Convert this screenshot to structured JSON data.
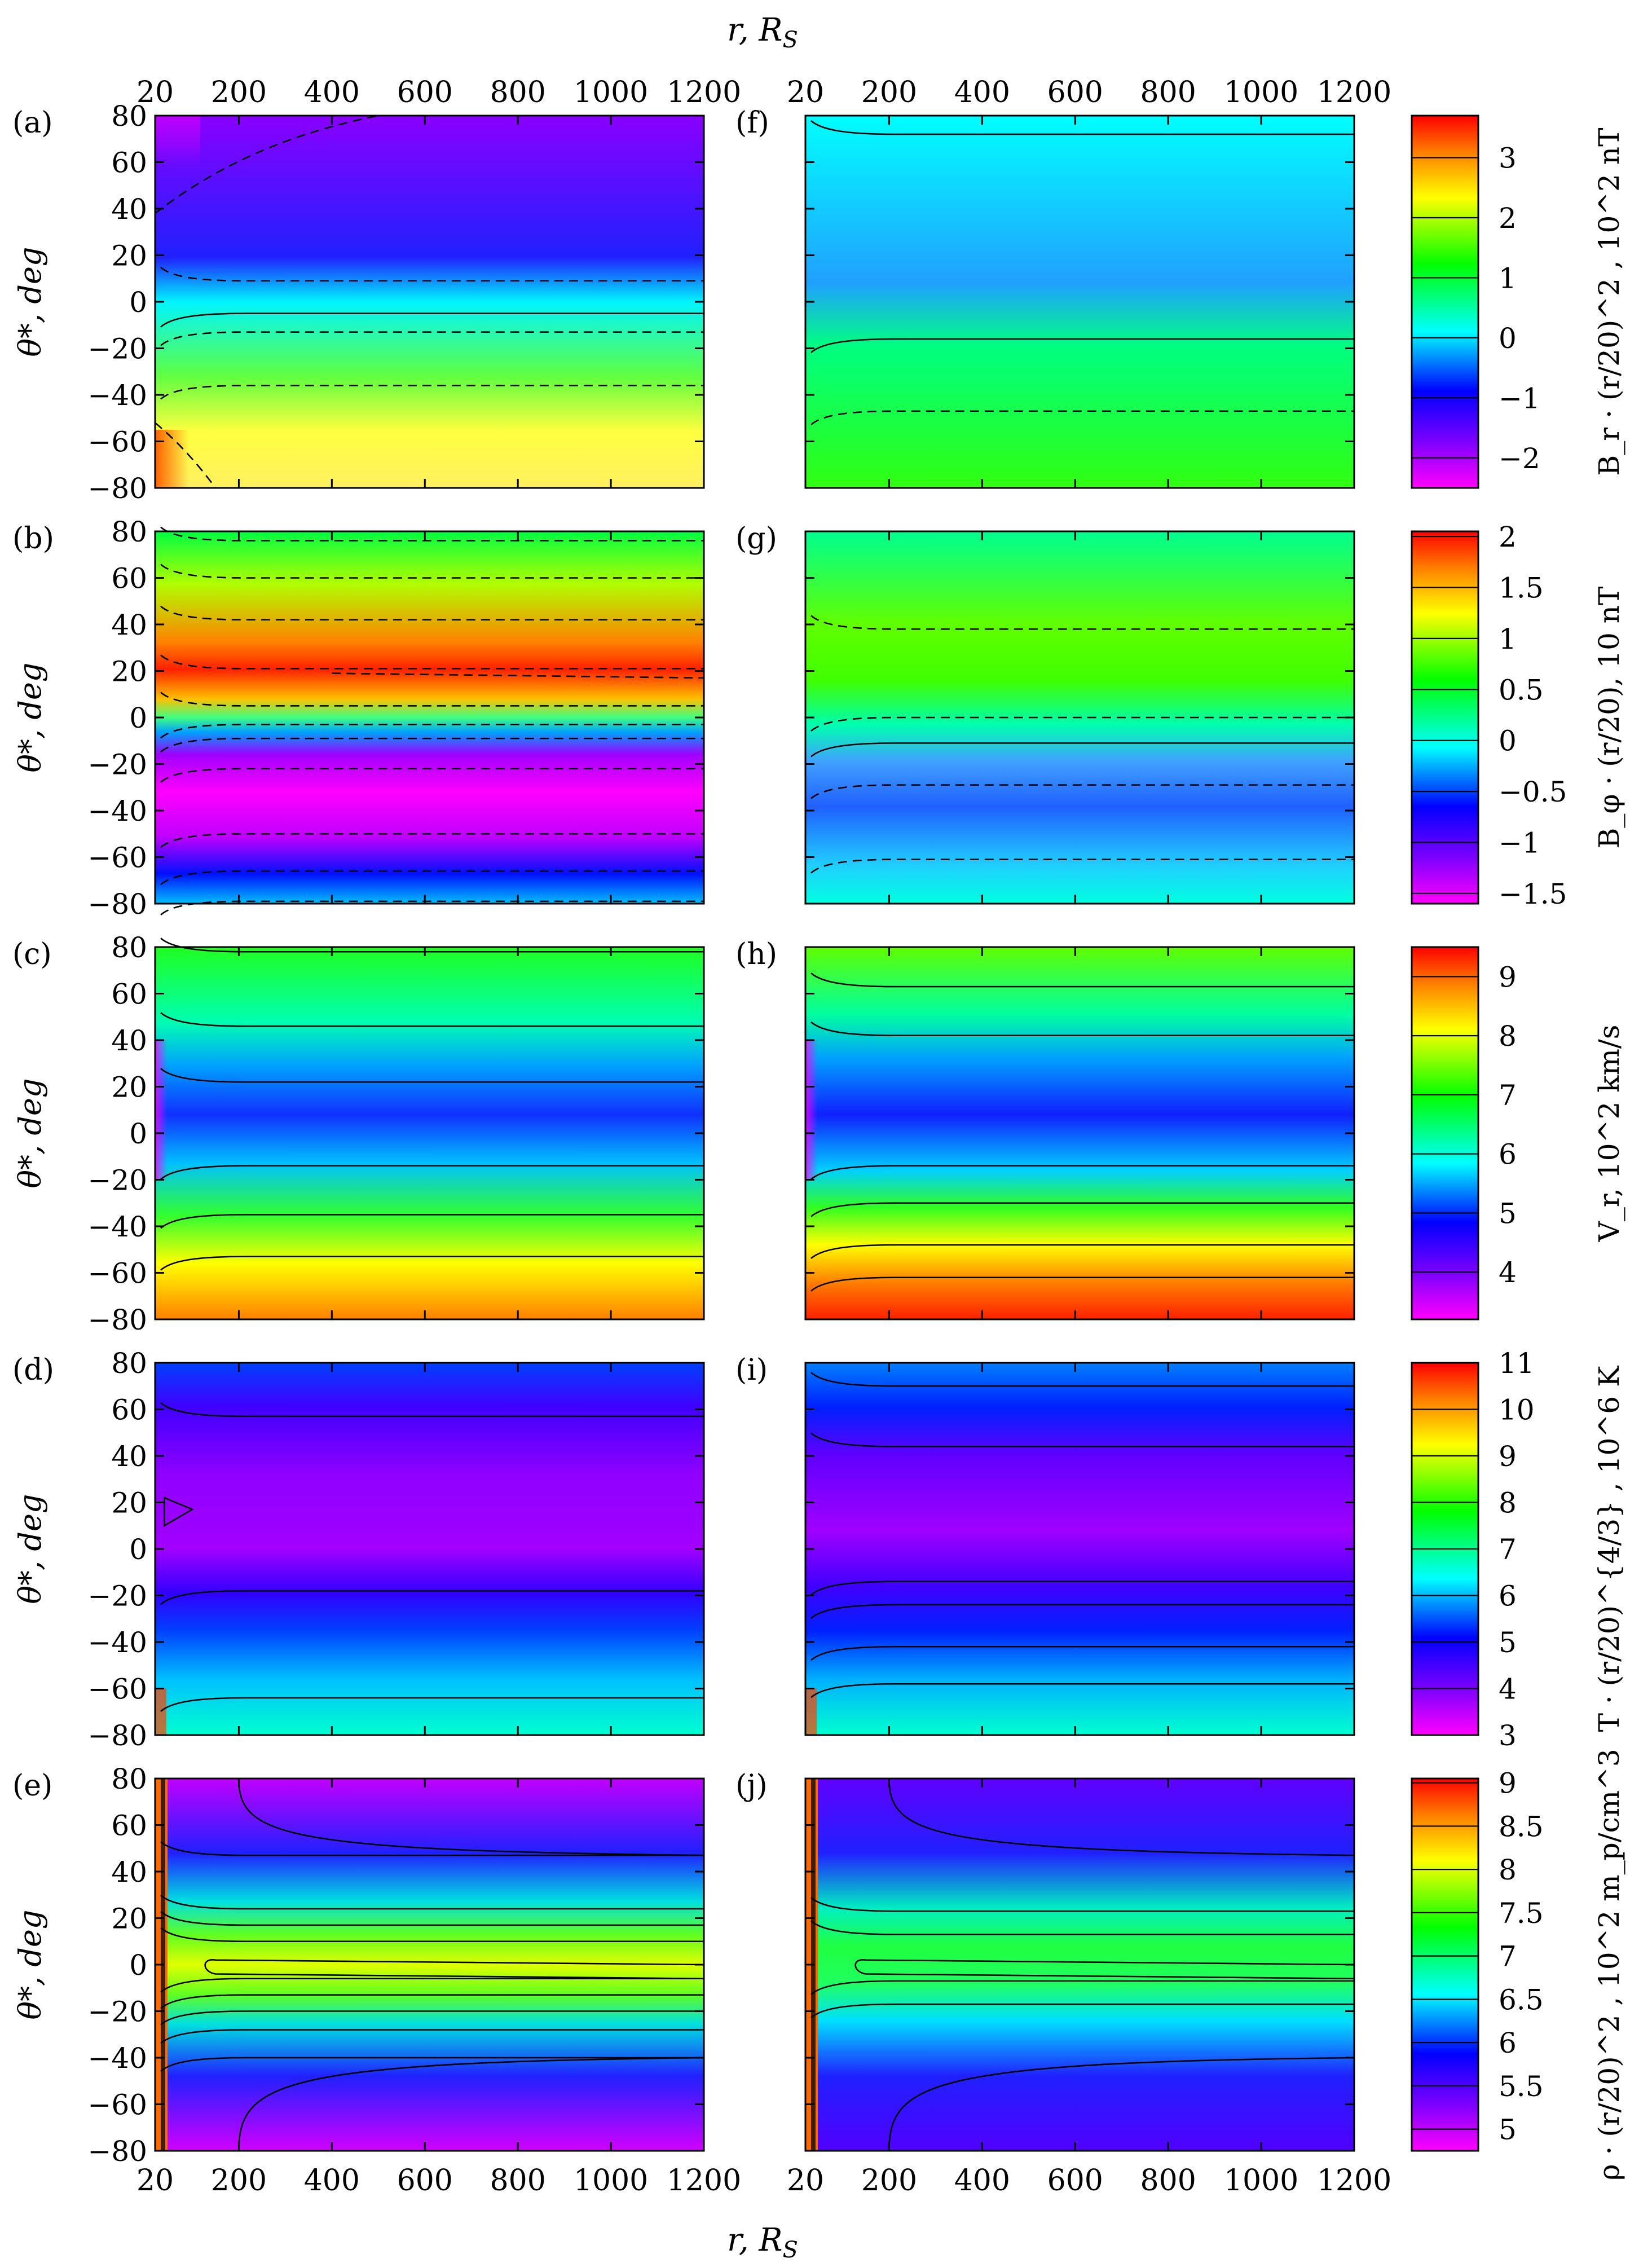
{
  "chart_data": {
    "type": "heatmap",
    "x_axis": {
      "label": "r, R_S",
      "label_parts": {
        "main": "r, R",
        "sub": "S"
      },
      "ticks": [
        20,
        200,
        400,
        600,
        800,
        1000,
        1200
      ],
      "range": [
        20,
        1200
      ]
    },
    "y_axis": {
      "label": "θ*, deg",
      "ticks": [
        80,
        60,
        40,
        20,
        0,
        -20,
        -40,
        -60,
        -80
      ],
      "tick_labels": [
        "80",
        "60",
        "40",
        "20",
        "0",
        "−20",
        "−40",
        "−60",
        "−80"
      ],
      "range": [
        -80,
        80
      ]
    },
    "rows": [
      {
        "panels": [
          "(a)",
          "(f)"
        ],
        "colorbar_label": "B_r · (r/20)^2 , 10^2 nT",
        "colorbar_ticks": [
          "3",
          "2",
          "1",
          "0",
          "−1",
          "−2"
        ],
        "colorbar_range": [
          -2.5,
          3.7
        ],
        "colorbar_tick_values": [
          3,
          2,
          1,
          0,
          -1,
          -2
        ]
      },
      {
        "panels": [
          "(b)",
          "(g)"
        ],
        "colorbar_label": "B_φ · (r/20), 10 nT",
        "colorbar_ticks": [
          "2",
          "1.5",
          "1",
          "0.5",
          "0",
          "−0.5",
          "−1",
          "−1.5"
        ],
        "colorbar_range": [
          -1.6,
          2.05
        ],
        "colorbar_tick_values": [
          2,
          1.5,
          1,
          0.5,
          0,
          -0.5,
          -1,
          -1.5
        ]
      },
      {
        "panels": [
          "(c)",
          "(h)"
        ],
        "colorbar_label": "V_r, 10^2 km/s",
        "colorbar_ticks": [
          "9",
          "8",
          "7",
          "6",
          "5",
          "4"
        ],
        "colorbar_range": [
          3.2,
          9.5
        ],
        "colorbar_tick_values": [
          9,
          8,
          7,
          6,
          5,
          4
        ]
      },
      {
        "panels": [
          "(d)",
          "(i)"
        ],
        "colorbar_label": "T · (r/20)^{4/3} , 10^6 K",
        "colorbar_ticks": [
          "11",
          "10",
          "9",
          "8",
          "7",
          "6",
          "5",
          "4",
          "3"
        ],
        "colorbar_range": [
          3,
          11
        ],
        "colorbar_tick_values": [
          11,
          10,
          9,
          8,
          7,
          6,
          5,
          4,
          3
        ]
      },
      {
        "panels": [
          "(e)",
          "(j)"
        ],
        "colorbar_label": "ρ · (r/20)^2 , 10^2 m_p/cm^3",
        "colorbar_ticks": [
          "9",
          "8.5",
          "8",
          "7.5",
          "7",
          "6.5",
          "6",
          "5.5",
          "5"
        ],
        "colorbar_range": [
          4.75,
          9.05
        ],
        "colorbar_tick_values": [
          9,
          8.5,
          8,
          7.5,
          7,
          6.5,
          6,
          5.5,
          5
        ]
      }
    ],
    "colormap": [
      "#ff00ff",
      "#8000ff",
      "#0000ff",
      "#00ffff",
      "#00ff00",
      "#ffff00",
      "#ff8000",
      "#ff0000"
    ]
  }
}
